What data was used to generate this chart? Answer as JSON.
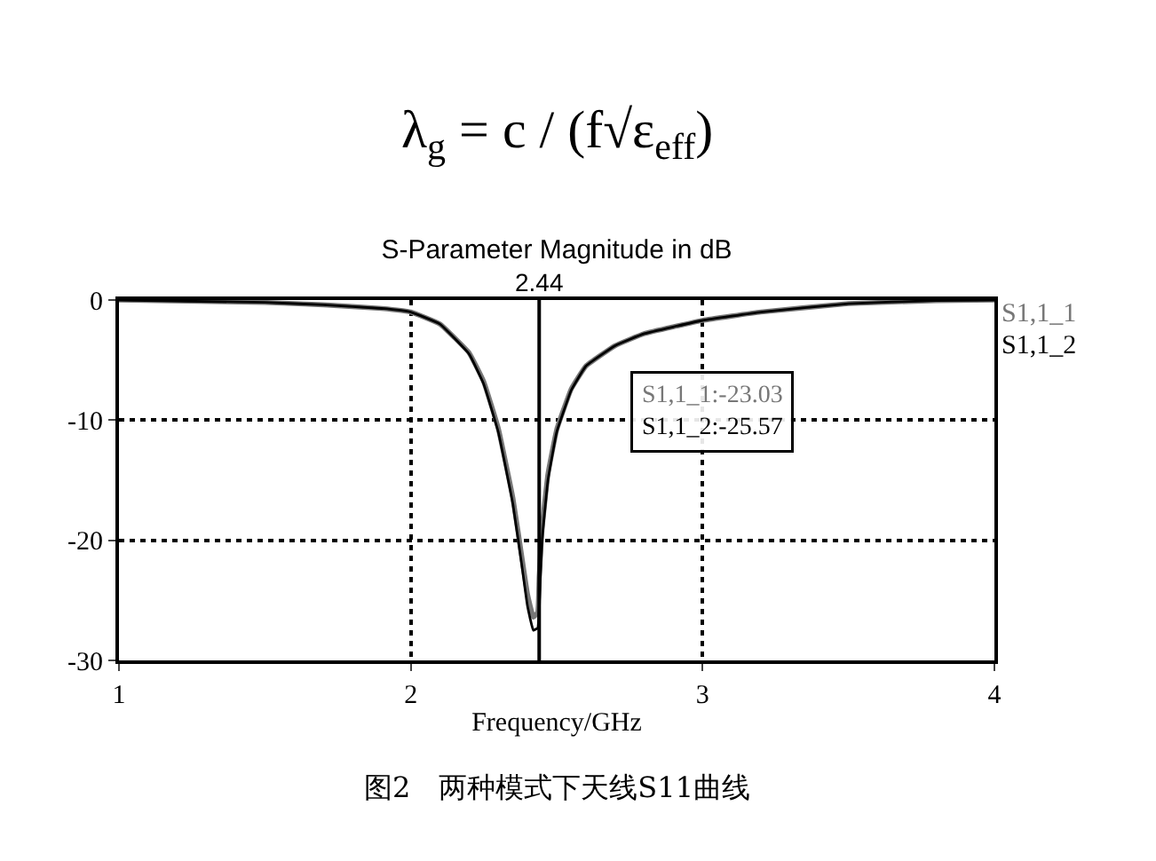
{
  "chart_data": {
    "type": "line",
    "title": "S-Parameter Magnitude in dB",
    "xlabel": "Frequency/GHz",
    "x": [
      1.0,
      1.5,
      1.7,
      1.9,
      2.0,
      2.1,
      2.2,
      2.25,
      2.3,
      2.35,
      2.38,
      2.4,
      2.42,
      2.435,
      2.44,
      2.45,
      2.47,
      2.5,
      2.55,
      2.6,
      2.7,
      2.8,
      3.0,
      3.2,
      3.5,
      3.8,
      4.0
    ],
    "series": [
      {
        "name": "S1,1_1",
        "color": "#777777",
        "values": [
          0,
          -0.2,
          -0.4,
          -0.7,
          -1.0,
          -2.0,
          -4.4,
          -6.8,
          -10.7,
          -16.5,
          -21.3,
          -24.5,
          -26.4,
          -26.0,
          -23.03,
          -19.0,
          -14.5,
          -10.8,
          -7.4,
          -5.5,
          -3.8,
          -2.8,
          -1.7,
          -1.0,
          -0.3,
          -0.05,
          0
        ]
      },
      {
        "name": "S1,1_2",
        "color": "#000000",
        "values": [
          0,
          -0.2,
          -0.4,
          -0.7,
          -1.0,
          -2.0,
          -4.5,
          -7.0,
          -11.0,
          -17.0,
          -22.0,
          -25.5,
          -27.5,
          -27.3,
          -25.57,
          -20.0,
          -15.0,
          -11.0,
          -7.5,
          -5.5,
          -3.8,
          -2.8,
          -1.7,
          -1.0,
          -0.3,
          -0.05,
          0
        ]
      }
    ],
    "xlim": [
      1,
      4
    ],
    "xticks": [
      1,
      2,
      3,
      4
    ],
    "ylim": [
      -30,
      0
    ],
    "yticks": [
      0,
      -10,
      -20,
      -30
    ],
    "grid": true,
    "line_style": "solid",
    "marker": "none",
    "legend": "right",
    "ref_lines": [
      {
        "axis": "x",
        "value": 2.44,
        "label": "2.44",
        "color": "#000000"
      }
    ],
    "annotations": [
      "λ$_{g}$ = c / (f√ε$_{eff}$)",
      "S1,1_1:-23.03",
      "S1,1_2:-25.57",
      "图2　两种模式下天线S11曲线"
    ]
  }
}
